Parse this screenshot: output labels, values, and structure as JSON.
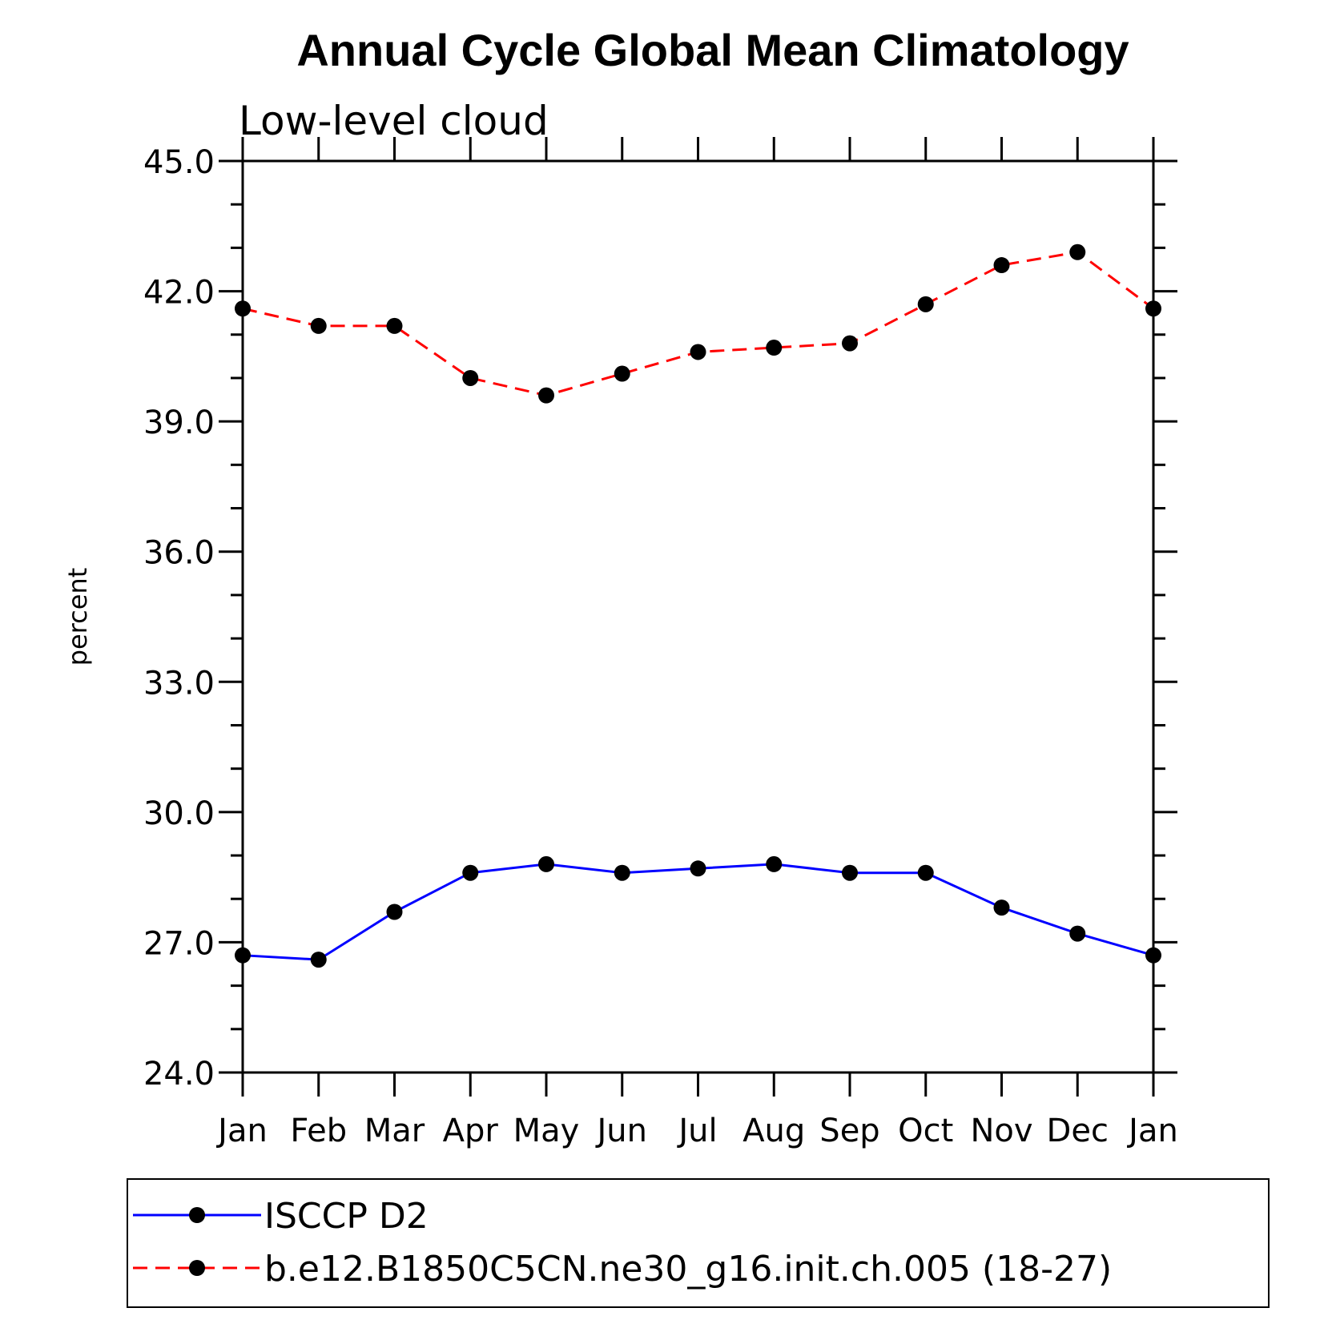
{
  "chart_data": {
    "type": "line",
    "title": "Annual Cycle Global Mean Climatology",
    "subtitle": "Low-level cloud",
    "ylabel": "percent",
    "xlabel": "",
    "categories": [
      "Jan",
      "Feb",
      "Mar",
      "Apr",
      "May",
      "Jun",
      "Jul",
      "Aug",
      "Sep",
      "Oct",
      "Nov",
      "Dec",
      "Jan"
    ],
    "ylim": [
      24.0,
      45.0
    ],
    "yticks": [
      "24.0",
      "27.0",
      "30.0",
      "33.0",
      "36.0",
      "39.0",
      "42.0",
      "45.0"
    ],
    "grid": false,
    "legend_position": "bottom",
    "series": [
      {
        "name": "ISCCP D2",
        "color": "#0000ff",
        "dash": "solid",
        "values": [
          26.7,
          26.6,
          27.7,
          28.6,
          28.8,
          28.6,
          28.7,
          28.8,
          28.6,
          28.6,
          27.8,
          27.2,
          26.7
        ]
      },
      {
        "name": "b.e12.B1850C5CN.ne30_g16.init.ch.005 (18-27)",
        "color": "#ff0000",
        "dash": "dashed",
        "values": [
          41.6,
          41.2,
          41.2,
          40.0,
          39.6,
          40.1,
          40.6,
          40.7,
          40.8,
          41.7,
          42.6,
          42.9,
          41.6
        ]
      }
    ]
  }
}
